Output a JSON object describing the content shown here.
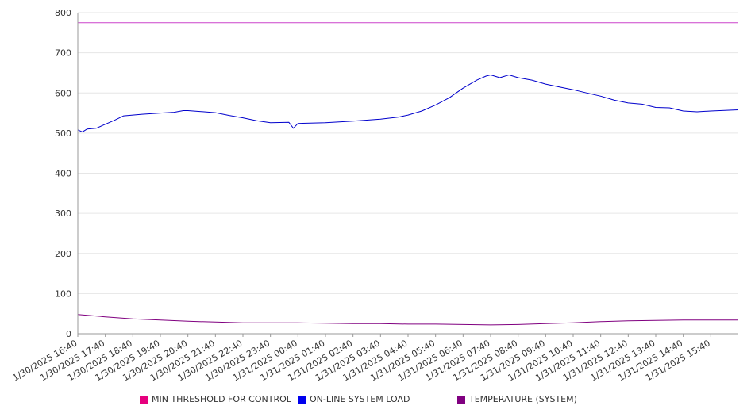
{
  "chart_data": {
    "type": "line",
    "title": "",
    "xlabel": "",
    "ylabel": "",
    "ylim": [
      0,
      800
    ],
    "y_ticks": [
      "0",
      "100",
      "200",
      "300",
      "400",
      "500",
      "600",
      "700",
      "800"
    ],
    "x_ticks": [
      "1/30/2025 16:40",
      "1/30/2025 17:40",
      "1/30/2025 18:40",
      "1/30/2025 19:40",
      "1/30/2025 20:40",
      "1/30/2025 21:40",
      "1/30/2025 22:40",
      "1/30/2025 23:40",
      "1/31/2025 00:40",
      "1/31/2025 01:40",
      "1/31/2025 02:40",
      "1/31/2025 03:40",
      "1/31/2025 04:40",
      "1/31/2025 05:40",
      "1/31/2025 06:40",
      "1/31/2025 07:40",
      "1/31/2025 08:40",
      "1/31/2025 09:40",
      "1/31/2025 10:40",
      "1/31/2025 11:40",
      "1/31/2025 12:40",
      "1/31/2025 13:40",
      "1/31/2025 14:40",
      "1/31/2025 15:40"
    ],
    "x_range": [
      "1/30/2025 16:40",
      "1/31/2025 16:40"
    ],
    "grid": true,
    "legend_position": "bottom",
    "series": [
      {
        "name": "MIN THRESHOLD FOR CONTROL",
        "color": "#e6007e",
        "line_color": "#cc44cc",
        "points": [
          [
            "1/30/2025 16:40",
            775
          ],
          [
            "1/31/2025 16:40",
            775
          ]
        ]
      },
      {
        "name": "ON-LINE SYSTEM LOAD",
        "color": "#0000ee",
        "line_color": "#0000cc",
        "points": [
          [
            "1/30/2025 16:40",
            508
          ],
          [
            "1/30/2025 16:50",
            503
          ],
          [
            "1/30/2025 17:00",
            510
          ],
          [
            "1/30/2025 17:20",
            512
          ],
          [
            "1/30/2025 17:40",
            522
          ],
          [
            "1/30/2025 18:00",
            532
          ],
          [
            "1/30/2025 18:20",
            543
          ],
          [
            "1/30/2025 18:40",
            545
          ],
          [
            "1/30/2025 19:00",
            547
          ],
          [
            "1/30/2025 19:40",
            550
          ],
          [
            "1/30/2025 20:10",
            552
          ],
          [
            "1/30/2025 20:30",
            556
          ],
          [
            "1/30/2025 20:40",
            556
          ],
          [
            "1/30/2025 21:40",
            551
          ],
          [
            "1/30/2025 22:10",
            544
          ],
          [
            "1/30/2025 22:40",
            538
          ],
          [
            "1/30/2025 23:10",
            531
          ],
          [
            "1/30/2025 23:40",
            526
          ],
          [
            "1/31/2025 00:20",
            527
          ],
          [
            "1/31/2025 00:30",
            512
          ],
          [
            "1/31/2025 00:40",
            524
          ],
          [
            "1/31/2025 01:40",
            526
          ],
          [
            "1/31/2025 02:40",
            530
          ],
          [
            "1/31/2025 03:40",
            535
          ],
          [
            "1/31/2025 04:20",
            540
          ],
          [
            "1/31/2025 04:40",
            545
          ],
          [
            "1/31/2025 05:10",
            555
          ],
          [
            "1/31/2025 05:40",
            570
          ],
          [
            "1/31/2025 06:10",
            588
          ],
          [
            "1/31/2025 06:40",
            612
          ],
          [
            "1/31/2025 07:10",
            632
          ],
          [
            "1/31/2025 07:30",
            642
          ],
          [
            "1/31/2025 07:40",
            645
          ],
          [
            "1/31/2025 08:00",
            638
          ],
          [
            "1/31/2025 08:20",
            645
          ],
          [
            "1/31/2025 08:40",
            638
          ],
          [
            "1/31/2025 09:10",
            632
          ],
          [
            "1/31/2025 09:40",
            622
          ],
          [
            "1/31/2025 10:10",
            615
          ],
          [
            "1/31/2025 10:40",
            608
          ],
          [
            "1/31/2025 11:10",
            600
          ],
          [
            "1/31/2025 11:40",
            592
          ],
          [
            "1/31/2025 12:10",
            582
          ],
          [
            "1/31/2025 12:40",
            575
          ],
          [
            "1/31/2025 13:10",
            572
          ],
          [
            "1/31/2025 13:40",
            564
          ],
          [
            "1/31/2025 14:10",
            563
          ],
          [
            "1/31/2025 14:40",
            555
          ],
          [
            "1/31/2025 15:10",
            553
          ],
          [
            "1/31/2025 15:40",
            555
          ],
          [
            "1/31/2025 16:40",
            558
          ]
        ]
      },
      {
        "name": "TEMPERATURE (SYSTEM)",
        "color": "#800080",
        "line_color": "#800080",
        "points": [
          [
            "1/30/2025 16:40",
            48
          ],
          [
            "1/30/2025 17:40",
            42
          ],
          [
            "1/30/2025 18:40",
            37
          ],
          [
            "1/30/2025 19:40",
            34
          ],
          [
            "1/30/2025 20:40",
            31
          ],
          [
            "1/30/2025 21:40",
            29
          ],
          [
            "1/30/2025 22:40",
            27
          ],
          [
            "1/30/2025 23:40",
            27
          ],
          [
            "1/31/2025 00:40",
            27
          ],
          [
            "1/31/2025 01:40",
            26
          ],
          [
            "1/31/2025 02:40",
            25
          ],
          [
            "1/31/2025 03:40",
            25
          ],
          [
            "1/31/2025 04:40",
            24
          ],
          [
            "1/31/2025 05:40",
            24
          ],
          [
            "1/31/2025 06:40",
            23
          ],
          [
            "1/31/2025 07:40",
            22
          ],
          [
            "1/31/2025 08:40",
            23
          ],
          [
            "1/31/2025 09:40",
            25
          ],
          [
            "1/31/2025 10:40",
            27
          ],
          [
            "1/31/2025 11:40",
            30
          ],
          [
            "1/31/2025 12:40",
            32
          ],
          [
            "1/31/2025 13:40",
            33
          ],
          [
            "1/31/2025 14:40",
            34
          ],
          [
            "1/31/2025 15:40",
            34
          ],
          [
            "1/31/2025 16:40",
            34
          ]
        ]
      }
    ]
  }
}
